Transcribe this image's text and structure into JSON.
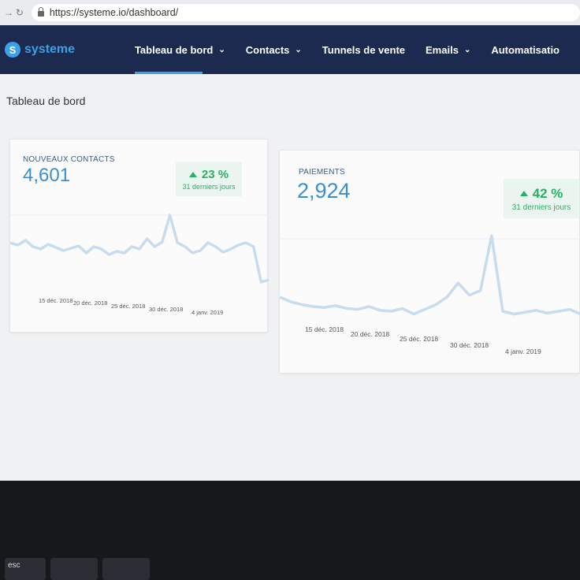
{
  "browser": {
    "back_icon": "arrow-right-icon",
    "reload_icon": "reload-icon",
    "url": "https://systeme.io/dashboard/"
  },
  "nav": {
    "logo_text": "systeme",
    "items": [
      {
        "label": "Tableau de bord",
        "active": true,
        "chevron": true
      },
      {
        "label": "Contacts",
        "chevron": true
      },
      {
        "label": "Tunnels de vente",
        "chevron": false
      },
      {
        "label": "Emails",
        "chevron": true
      },
      {
        "label": "Automatisatio",
        "chevron": false
      }
    ]
  },
  "page": {
    "title": "Tableau de bord"
  },
  "cards": [
    {
      "label": "NOUVEAUX CONTACTS",
      "value": "4,601",
      "change": "23 %",
      "period": "31 derniers jours",
      "x_ticks": [
        "15 déc. 2018",
        "20 déc. 2018",
        "25 déc. 2018",
        "30 déc. 2018",
        "4 janv. 2019"
      ]
    },
    {
      "label": "PAIEMENTS",
      "value": "2,924",
      "change": "42 %",
      "period": "31 derniers jours",
      "x_ticks": [
        "15 déc. 2018",
        "20 déc. 2018",
        "25 déc. 2018",
        "30 déc. 2018",
        "4 janv. 2019"
      ]
    }
  ],
  "colors": {
    "accent": "#3ea0e4",
    "nav_bg": "#1c2a4f",
    "positive": "#2ab066",
    "line": "#c8dcee"
  },
  "chart_data": [
    {
      "type": "line",
      "values": [
        0.55,
        0.52,
        0.58,
        0.5,
        0.47,
        0.53,
        0.49,
        0.45,
        0.48,
        0.51,
        0.42,
        0.5,
        0.47,
        0.4,
        0.44,
        0.42,
        0.5,
        0.47,
        0.6,
        0.5,
        0.56,
        0.9,
        0.55,
        0.5,
        0.42,
        0.45,
        0.55,
        0.5,
        0.43,
        0.47,
        0.52,
        0.55,
        0.5,
        0.05,
        0.08
      ],
      "xlabel": "",
      "ylabel": ""
    },
    {
      "type": "line",
      "values": [
        0.3,
        0.25,
        0.22,
        0.2,
        0.19,
        0.21,
        0.18,
        0.17,
        0.2,
        0.16,
        0.15,
        0.18,
        0.12,
        0.17,
        0.22,
        0.3,
        0.45,
        0.32,
        0.37,
        0.95,
        0.15,
        0.12,
        0.14,
        0.16,
        0.13,
        0.15,
        0.17,
        0.12
      ],
      "xlabel": "",
      "ylabel": ""
    }
  ]
}
